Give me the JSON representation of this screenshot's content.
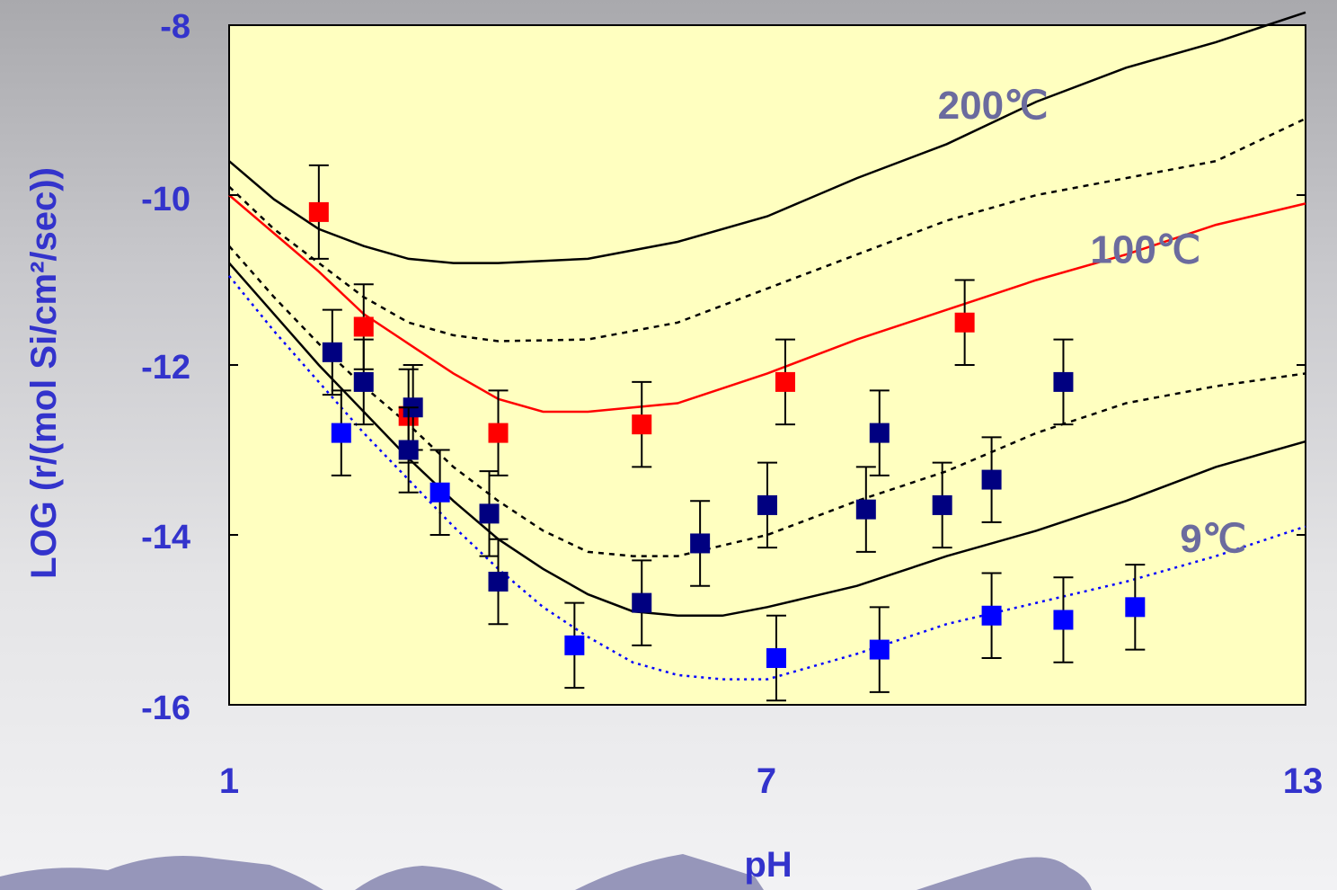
{
  "colors": {
    "plot_bg": "#ffffc0",
    "axis_text": "#3333cc",
    "curve_label": "#6b6b9e",
    "red_series": "#ff0000",
    "navy_series": "#000080",
    "blue_series": "#0000ff",
    "mountain": "#8c8cb4"
  },
  "chart_data": {
    "type": "scatter",
    "xlabel": "pH",
    "ylabel": "LOG (r/(mol Si/cm²/sec))",
    "xlim": [
      1,
      13
    ],
    "ylim": [
      -16,
      -8
    ],
    "xticks": [
      "1",
      "7",
      "13"
    ],
    "yticks": [
      "-8",
      "-10",
      "-12",
      "-14",
      "-16"
    ],
    "grid": false,
    "legend": "none",
    "annotations": [
      {
        "text": "200℃",
        "x": 8.9,
        "y": -9.1
      },
      {
        "text": "100℃",
        "x": 10.6,
        "y": -10.8
      },
      {
        "text": "9℃",
        "x": 11.6,
        "y": -14.2
      }
    ],
    "curves": [
      {
        "style": "solid",
        "color": "#000000",
        "points": [
          [
            1,
            -9.6
          ],
          [
            1.5,
            -10.05
          ],
          [
            2,
            -10.4
          ],
          [
            2.5,
            -10.6
          ],
          [
            3,
            -10.75
          ],
          [
            3.5,
            -10.8
          ],
          [
            4,
            -10.8
          ],
          [
            5,
            -10.75
          ],
          [
            6,
            -10.55
          ],
          [
            7,
            -10.25
          ],
          [
            8,
            -9.8
          ],
          [
            9,
            -9.4
          ],
          [
            10,
            -8.9
          ],
          [
            11,
            -8.5
          ],
          [
            12,
            -8.2
          ],
          [
            13,
            -7.85
          ]
        ]
      },
      {
        "style": "dashed",
        "color": "#000000",
        "points": [
          [
            1,
            -9.9
          ],
          [
            1.5,
            -10.4
          ],
          [
            2,
            -10.8
          ],
          [
            2.5,
            -11.2
          ],
          [
            3,
            -11.5
          ],
          [
            3.5,
            -11.65
          ],
          [
            4,
            -11.72
          ],
          [
            5,
            -11.7
          ],
          [
            6,
            -11.5
          ],
          [
            7,
            -11.1
          ],
          [
            8,
            -10.7
          ],
          [
            9,
            -10.3
          ],
          [
            10,
            -10
          ],
          [
            11,
            -9.8
          ],
          [
            12,
            -9.6
          ],
          [
            13,
            -9.1
          ]
        ]
      },
      {
        "style": "solid",
        "color": "#ff0000",
        "points": [
          [
            1,
            -10
          ],
          [
            1.5,
            -10.45
          ],
          [
            2,
            -10.9
          ],
          [
            2.5,
            -11.4
          ],
          [
            3,
            -11.75
          ],
          [
            3.5,
            -12.1
          ],
          [
            4,
            -12.4
          ],
          [
            4.5,
            -12.55
          ],
          [
            5,
            -12.55
          ],
          [
            6,
            -12.45
          ],
          [
            7,
            -12.1
          ],
          [
            8,
            -11.7
          ],
          [
            9,
            -11.35
          ],
          [
            10,
            -11
          ],
          [
            11,
            -10.7
          ],
          [
            12,
            -10.35
          ],
          [
            13,
            -10.1
          ]
        ]
      },
      {
        "style": "dashed",
        "color": "#000000",
        "points": [
          [
            1,
            -10.6
          ],
          [
            1.5,
            -11.2
          ],
          [
            2,
            -11.75
          ],
          [
            2.5,
            -12.25
          ],
          [
            3,
            -12.7
          ],
          [
            3.5,
            -13.2
          ],
          [
            4,
            -13.6
          ],
          [
            4.5,
            -13.95
          ],
          [
            5,
            -14.2
          ],
          [
            5.5,
            -14.25
          ],
          [
            6,
            -14.25
          ],
          [
            7,
            -14
          ],
          [
            8,
            -13.6
          ],
          [
            9,
            -13.25
          ],
          [
            10,
            -12.8
          ],
          [
            11,
            -12.45
          ],
          [
            12,
            -12.25
          ],
          [
            13,
            -12.1
          ]
        ]
      },
      {
        "style": "solid",
        "color": "#000000",
        "points": [
          [
            1,
            -10.8
          ],
          [
            1.5,
            -11.4
          ],
          [
            2,
            -12
          ],
          [
            2.5,
            -12.55
          ],
          [
            3,
            -13.1
          ],
          [
            3.5,
            -13.6
          ],
          [
            4,
            -14.05
          ],
          [
            4.5,
            -14.4
          ],
          [
            5,
            -14.7
          ],
          [
            5.5,
            -14.9
          ],
          [
            6,
            -14.95
          ],
          [
            6.5,
            -14.95
          ],
          [
            7,
            -14.85
          ],
          [
            8,
            -14.6
          ],
          [
            9,
            -14.25
          ],
          [
            10,
            -13.95
          ],
          [
            11,
            -13.6
          ],
          [
            12,
            -13.2
          ],
          [
            13,
            -12.9
          ]
        ]
      },
      {
        "style": "dotted",
        "color": "#0000ff",
        "points": [
          [
            1,
            -10.95
          ],
          [
            1.5,
            -11.6
          ],
          [
            2,
            -12.2
          ],
          [
            2.5,
            -12.8
          ],
          [
            3,
            -13.35
          ],
          [
            3.5,
            -13.9
          ],
          [
            4,
            -14.4
          ],
          [
            4.5,
            -14.85
          ],
          [
            5,
            -15.2
          ],
          [
            5.5,
            -15.5
          ],
          [
            6,
            -15.65
          ],
          [
            6.5,
            -15.7
          ],
          [
            7,
            -15.7
          ],
          [
            8,
            -15.4
          ],
          [
            9,
            -15.05
          ],
          [
            10,
            -14.8
          ],
          [
            11,
            -14.55
          ],
          [
            12,
            -14.25
          ],
          [
            13,
            -13.9
          ]
        ]
      }
    ],
    "series": [
      {
        "color": "#ff0000",
        "points": [
          {
            "x": 2.0,
            "y": -10.2,
            "err": 0.55
          },
          {
            "x": 2.5,
            "y": -11.55,
            "err": 0.5
          },
          {
            "x": 3.0,
            "y": -12.6,
            "err": 0.55
          },
          {
            "x": 4.0,
            "y": -12.8,
            "err": 0.5
          },
          {
            "x": 5.6,
            "y": -12.7,
            "err": 0.5
          },
          {
            "x": 7.2,
            "y": -12.2,
            "err": 0.5
          },
          {
            "x": 9.2,
            "y": -11.5,
            "err": 0.5
          }
        ]
      },
      {
        "color": "#000080",
        "points": [
          {
            "x": 2.15,
            "y": -11.85,
            "err": 0.5
          },
          {
            "x": 2.5,
            "y": -12.2,
            "err": 0.5
          },
          {
            "x": 3.05,
            "y": -12.5,
            "err": 0.5
          },
          {
            "x": 3.0,
            "y": -13.0,
            "err": 0.5
          },
          {
            "x": 3.9,
            "y": -13.75,
            "err": 0.5
          },
          {
            "x": 4.0,
            "y": -14.55,
            "err": 0.5
          },
          {
            "x": 5.6,
            "y": -14.8,
            "err": 0.5
          },
          {
            "x": 6.25,
            "y": -14.1,
            "err": 0.5
          },
          {
            "x": 7.0,
            "y": -13.65,
            "err": 0.5
          },
          {
            "x": 8.1,
            "y": -13.7,
            "err": 0.5
          },
          {
            "x": 8.25,
            "y": -12.8,
            "err": 0.5
          },
          {
            "x": 8.95,
            "y": -13.65,
            "err": 0.5
          },
          {
            "x": 9.5,
            "y": -13.35,
            "err": 0.5
          },
          {
            "x": 10.3,
            "y": -12.2,
            "err": 0.5
          }
        ]
      },
      {
        "color": "#0000ff",
        "points": [
          {
            "x": 2.25,
            "y": -12.8,
            "err": 0.5
          },
          {
            "x": 3.35,
            "y": -13.5,
            "err": 0.5
          },
          {
            "x": 4.85,
            "y": -15.3,
            "err": 0.5
          },
          {
            "x": 7.1,
            "y": -15.45,
            "err": 0.5
          },
          {
            "x": 8.25,
            "y": -15.35,
            "err": 0.5
          },
          {
            "x": 9.5,
            "y": -14.95,
            "err": 0.5
          },
          {
            "x": 10.3,
            "y": -15.0,
            "err": 0.5
          },
          {
            "x": 11.1,
            "y": -14.85,
            "err": 0.5
          }
        ]
      }
    ]
  }
}
